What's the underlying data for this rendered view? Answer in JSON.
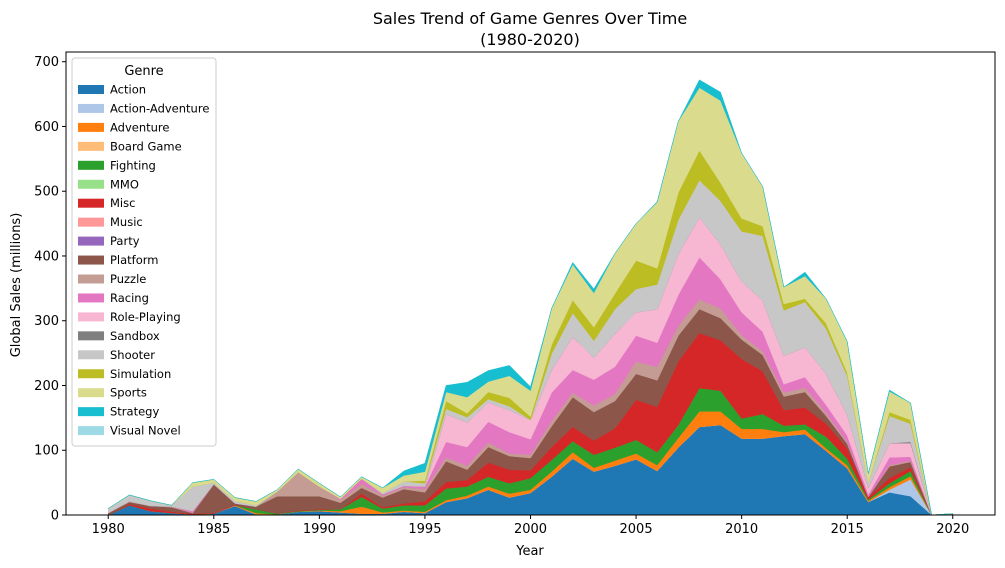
{
  "chart_data": {
    "type": "area",
    "stacked": true,
    "title": "Sales Trend of Game Genres Over Time",
    "subtitle": "(1980-2020)",
    "xlabel": "Year",
    "ylabel": "Global Sales (millions)",
    "xlim": [
      1978,
      2022
    ],
    "ylim": [
      0,
      715
    ],
    "xticks": [
      1980,
      1985,
      1990,
      1995,
      2000,
      2005,
      2010,
      2015,
      2020
    ],
    "yticks": [
      0,
      100,
      200,
      300,
      400,
      500,
      600,
      700
    ],
    "grid": false,
    "legend": {
      "title": "Genre",
      "position": "top-left"
    },
    "x": [
      1980,
      1981,
      1982,
      1983,
      1984,
      1985,
      1986,
      1987,
      1988,
      1989,
      1990,
      1991,
      1992,
      1993,
      1994,
      1995,
      1996,
      1997,
      1998,
      1999,
      2000,
      2001,
      2002,
      2003,
      2004,
      2005,
      2006,
      2007,
      2008,
      2009,
      2010,
      2011,
      2012,
      2013,
      2014,
      2015,
      2016,
      2017,
      2018,
      2019,
      2020
    ],
    "series": [
      {
        "name": "Action",
        "color": "#1f77b4",
        "values": [
          0,
          15,
          6,
          3,
          1,
          2,
          14,
          1,
          1,
          5,
          6,
          4,
          2,
          2,
          5,
          3,
          20,
          26,
          39,
          27,
          34,
          59,
          87,
          67,
          76,
          86,
          68,
          104,
          136,
          139,
          118,
          118,
          122,
          125,
          99,
          72,
          20,
          35,
          29,
          0,
          0
        ]
      },
      {
        "name": "Action-Adventure",
        "color": "#aec7e8",
        "values": [
          0,
          0,
          0,
          0,
          0,
          0,
          0,
          0,
          0,
          0,
          0,
          0,
          0,
          0,
          0,
          0,
          0,
          0,
          0,
          0,
          0,
          0,
          0,
          0,
          0,
          0,
          0,
          0,
          0,
          0,
          0,
          0,
          0,
          0,
          0,
          0,
          0,
          4,
          26,
          0,
          0
        ]
      },
      {
        "name": "Adventure",
        "color": "#ff7f0e",
        "values": [
          0,
          0,
          0,
          0,
          0,
          0,
          1,
          2,
          0,
          0,
          1,
          2,
          11,
          2,
          2,
          2,
          3,
          4,
          5,
          6,
          5,
          8,
          10,
          6,
          8,
          9,
          9,
          15,
          24,
          21,
          15,
          15,
          6,
          7,
          4,
          5,
          2,
          4,
          5,
          0,
          0
        ]
      },
      {
        "name": "Board Game",
        "color": "#ffbb78",
        "values": [
          0,
          0,
          0,
          0,
          0,
          0,
          0,
          0,
          0,
          0,
          0,
          0,
          0,
          0,
          0,
          0,
          0,
          0,
          0,
          0,
          0,
          0,
          0,
          0,
          0,
          0,
          0,
          0,
          0,
          0,
          0,
          0,
          0,
          0,
          0,
          0,
          0,
          0,
          0,
          0,
          0
        ]
      },
      {
        "name": "Fighting",
        "color": "#2ca02c",
        "values": [
          0,
          0,
          0,
          0,
          0,
          0,
          0,
          6,
          1,
          1,
          1,
          3,
          15,
          6,
          8,
          10,
          18,
          14,
          15,
          16,
          18,
          18,
          17,
          20,
          20,
          21,
          20,
          20,
          36,
          32,
          16,
          23,
          10,
          8,
          18,
          10,
          2,
          6,
          8,
          0,
          0
        ]
      },
      {
        "name": "MMO",
        "color": "#98df8a",
        "values": [
          0,
          0,
          0,
          0,
          0,
          0,
          0,
          0,
          0,
          0,
          0,
          0,
          0,
          0,
          0,
          0,
          0,
          0,
          0,
          0,
          0,
          0,
          0,
          0,
          0,
          0,
          0,
          0,
          0,
          0,
          0,
          0,
          0,
          0,
          0,
          0,
          0,
          0,
          0,
          0,
          0
        ]
      },
      {
        "name": "Misc",
        "color": "#d62728",
        "values": [
          0,
          2,
          4,
          2,
          1,
          1,
          1,
          0,
          0,
          1,
          1,
          0,
          5,
          2,
          3,
          6,
          10,
          10,
          22,
          21,
          12,
          20,
          22,
          22,
          30,
          62,
          70,
          98,
          85,
          78,
          92,
          66,
          24,
          26,
          20,
          16,
          4,
          8,
          6,
          0,
          2
        ]
      },
      {
        "name": "Music",
        "color": "#ff9896",
        "values": [
          0,
          0,
          0,
          0,
          0,
          0,
          0,
          0,
          0,
          0,
          0,
          0,
          0,
          0,
          0,
          0,
          0,
          0,
          0,
          0,
          0,
          0,
          0,
          0,
          0,
          0,
          0,
          0,
          0,
          0,
          0,
          0,
          0,
          0,
          0,
          0,
          0,
          0,
          0,
          0,
          0
        ]
      },
      {
        "name": "Party",
        "color": "#9467bd",
        "values": [
          0,
          0,
          0,
          0,
          0,
          0,
          0,
          0,
          0,
          0,
          0,
          0,
          0,
          0,
          0,
          0,
          0,
          0,
          0,
          0,
          0,
          0,
          0,
          0,
          0,
          0,
          0,
          0,
          0,
          0,
          0,
          0,
          0,
          0,
          0,
          0,
          0,
          0,
          0,
          0,
          0
        ]
      },
      {
        "name": "Platform",
        "color": "#8c564b",
        "values": [
          3,
          3,
          4,
          7,
          1,
          44,
          2,
          4,
          27,
          22,
          20,
          10,
          9,
          15,
          22,
          14,
          32,
          16,
          24,
          21,
          19,
          32,
          46,
          44,
          42,
          40,
          41,
          40,
          37,
          34,
          30,
          25,
          21,
          24,
          12,
          7,
          0,
          18,
          8,
          0,
          0
        ]
      },
      {
        "name": "Puzzle",
        "color": "#c49c94",
        "values": [
          0,
          1,
          0,
          1,
          0,
          1,
          0,
          0,
          7,
          37,
          15,
          4,
          6,
          3,
          3,
          5,
          6,
          6,
          7,
          4,
          5,
          8,
          7,
          10,
          11,
          19,
          21,
          15,
          15,
          15,
          7,
          6,
          6,
          7,
          5,
          3,
          0,
          2,
          2,
          0,
          0
        ]
      },
      {
        "name": "Racing",
        "color": "#e377c2",
        "values": [
          0,
          0,
          0,
          0,
          3,
          0,
          0,
          0,
          0,
          0,
          0,
          2,
          8,
          2,
          2,
          4,
          24,
          29,
          32,
          33,
          24,
          44,
          35,
          40,
          42,
          40,
          37,
          48,
          65,
          45,
          35,
          30,
          13,
          16,
          12,
          10,
          4,
          12,
          6,
          0,
          0
        ]
      },
      {
        "name": "Role-Playing",
        "color": "#f7b6d2",
        "values": [
          0,
          0,
          0,
          0,
          0,
          0,
          0,
          0,
          0,
          0,
          0,
          0,
          0,
          0,
          0,
          0,
          43,
          38,
          30,
          34,
          30,
          35,
          51,
          34,
          51,
          36,
          52,
          63,
          62,
          54,
          48,
          48,
          44,
          46,
          48,
          32,
          10,
          22,
          21,
          0,
          0
        ]
      },
      {
        "name": "Sandbox",
        "color": "#7f7f7f",
        "values": [
          0,
          0,
          0,
          0,
          0,
          0,
          0,
          0,
          0,
          0,
          0,
          0,
          0,
          0,
          0,
          0,
          0,
          0,
          0,
          0,
          0,
          0,
          0,
          0,
          0,
          0,
          0,
          0,
          0,
          0,
          0,
          0,
          0,
          0,
          0,
          0,
          0,
          0,
          2,
          0,
          0
        ]
      },
      {
        "name": "Shooter",
        "color": "#c7c7c7",
        "values": [
          7,
          10,
          8,
          2,
          38,
          2,
          4,
          2,
          0,
          0,
          0,
          0,
          0,
          2,
          7,
          5,
          8,
          8,
          5,
          6,
          0,
          25,
          37,
          26,
          38,
          36,
          38,
          53,
          57,
          67,
          77,
          100,
          70,
          70,
          70,
          60,
          8,
          42,
          28,
          0,
          0
        ]
      },
      {
        "name": "Simulation",
        "color": "#bcbd22",
        "values": [
          0,
          0,
          0,
          0,
          0,
          0,
          0,
          0,
          0,
          0,
          0,
          0,
          0,
          0,
          0,
          4,
          12,
          6,
          11,
          13,
          5,
          14,
          20,
          21,
          24,
          44,
          25,
          42,
          46,
          28,
          20,
          15,
          10,
          5,
          8,
          5,
          0,
          6,
          6,
          0,
          0
        ]
      },
      {
        "name": "Sports",
        "color": "#dbdb8d",
        "values": [
          0,
          0,
          0,
          0,
          6,
          5,
          5,
          6,
          3,
          5,
          5,
          3,
          3,
          8,
          9,
          14,
          14,
          25,
          16,
          34,
          40,
          56,
          55,
          53,
          62,
          57,
          102,
          110,
          97,
          127,
          101,
          61,
          26,
          35,
          38,
          48,
          14,
          32,
          26,
          0,
          0
        ]
      },
      {
        "name": "Strategy",
        "color": "#17becf",
        "values": [
          0,
          0,
          0,
          0,
          0,
          0,
          0,
          0,
          0,
          0,
          0,
          0,
          0,
          0,
          7,
          13,
          10,
          23,
          17,
          16,
          6,
          0,
          3,
          6,
          0,
          0,
          1,
          0,
          12,
          13,
          0,
          0,
          0,
          6,
          0,
          0,
          0,
          2,
          0,
          0,
          0
        ]
      },
      {
        "name": "Visual Novel",
        "color": "#9edae5",
        "values": [
          0,
          0,
          0,
          0,
          0,
          0,
          0,
          0,
          0,
          0,
          0,
          0,
          0,
          0,
          0,
          0,
          0,
          0,
          0,
          0,
          0,
          0,
          0,
          0,
          0,
          0,
          0,
          0,
          0,
          0,
          0,
          0,
          0,
          0,
          0,
          0,
          0,
          0,
          0,
          0,
          0
        ]
      }
    ]
  }
}
